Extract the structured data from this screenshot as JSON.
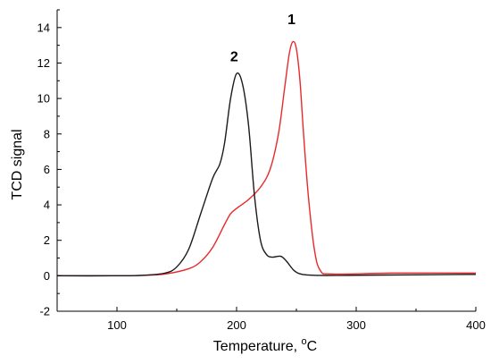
{
  "chart_data": {
    "type": "line",
    "xlabel": "Temperature, ",
    "xlabel_unit": "o",
    "xlabel_unit_tail": "C",
    "ylabel": "TCD signal",
    "xlim": [
      50,
      400
    ],
    "ylim": [
      -2,
      15
    ],
    "x_ticks": [
      100,
      200,
      300,
      400
    ],
    "y_ticks": [
      -2,
      0,
      2,
      4,
      6,
      8,
      10,
      12,
      14
    ],
    "x_tick_labels": [
      "100",
      "200",
      "300",
      "400"
    ],
    "y_tick_labels": [
      "-2",
      "0",
      "2",
      "4",
      "6",
      "8",
      "10",
      "12",
      "14"
    ],
    "grid": false,
    "series": [
      {
        "label": "1",
        "color": "#e8292b",
        "label_at": [
          246,
          14.2
        ],
        "points": [
          [
            50,
            0
          ],
          [
            100,
            0
          ],
          [
            120,
            0.02
          ],
          [
            140,
            0.1
          ],
          [
            160,
            0.4
          ],
          [
            170,
            0.8
          ],
          [
            180,
            1.6
          ],
          [
            190,
            2.9
          ],
          [
            195,
            3.5
          ],
          [
            200,
            3.8
          ],
          [
            210,
            4.3
          ],
          [
            220,
            5.0
          ],
          [
            228,
            6.0
          ],
          [
            235,
            8.0
          ],
          [
            240,
            10.5
          ],
          [
            244,
            12.5
          ],
          [
            247,
            13.2
          ],
          [
            250,
            12.8
          ],
          [
            253,
            11.0
          ],
          [
            256,
            8.0
          ],
          [
            260,
            4.5
          ],
          [
            265,
            1.5
          ],
          [
            270,
            0.3
          ],
          [
            280,
            0.1
          ],
          [
            330,
            0.15
          ],
          [
            400,
            0.15
          ]
        ]
      },
      {
        "label": "2",
        "color": "#1a1a1a",
        "label_at": [
          198,
          12.1
        ],
        "points": [
          [
            50,
            0
          ],
          [
            100,
            0
          ],
          [
            120,
            0.02
          ],
          [
            140,
            0.15
          ],
          [
            150,
            0.5
          ],
          [
            160,
            1.5
          ],
          [
            170,
            3.5
          ],
          [
            180,
            5.5
          ],
          [
            186,
            6.3
          ],
          [
            190,
            7.5
          ],
          [
            195,
            10.0
          ],
          [
            200,
            11.4
          ],
          [
            205,
            10.8
          ],
          [
            210,
            8.5
          ],
          [
            215,
            4.5
          ],
          [
            220,
            2.0
          ],
          [
            225,
            1.2
          ],
          [
            230,
            1.05
          ],
          [
            237,
            1.1
          ],
          [
            242,
            0.8
          ],
          [
            248,
            0.3
          ],
          [
            255,
            0.08
          ],
          [
            270,
            0.02
          ],
          [
            300,
            0.03
          ],
          [
            400,
            0.08
          ]
        ]
      }
    ]
  }
}
